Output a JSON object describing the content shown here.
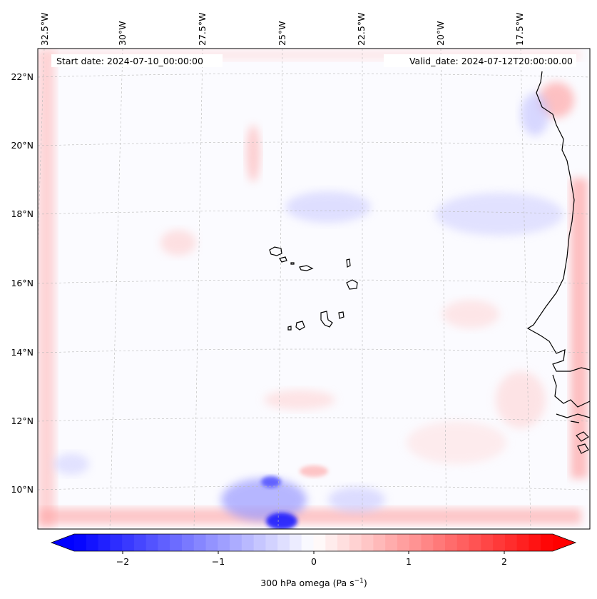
{
  "map": {
    "start_date": "Start date: 2024-07-10_00:00:00",
    "valid_date": "Valid_date: 2024-07-12T20:00:00.00",
    "lon_labels": [
      "32.5°W",
      "30°W",
      "27.5°W",
      "25°W",
      "22.5°W",
      "20°W",
      "17.5°W"
    ],
    "lat_labels": [
      "22°N",
      "20°N",
      "18°N",
      "16°N",
      "14°N",
      "12°N",
      "10°N"
    ]
  },
  "colorbar": {
    "label": "300 hPa omega (Pa s",
    "label_exponent": "−1",
    "label_close": ")",
    "ticks": [
      "−2",
      "−1",
      "0",
      "1",
      "2"
    ],
    "range": [
      -2.7,
      2.7
    ],
    "colors": {
      "negative": "#0000ff",
      "zero": "#ffffff",
      "positive": "#ff0000"
    }
  }
}
